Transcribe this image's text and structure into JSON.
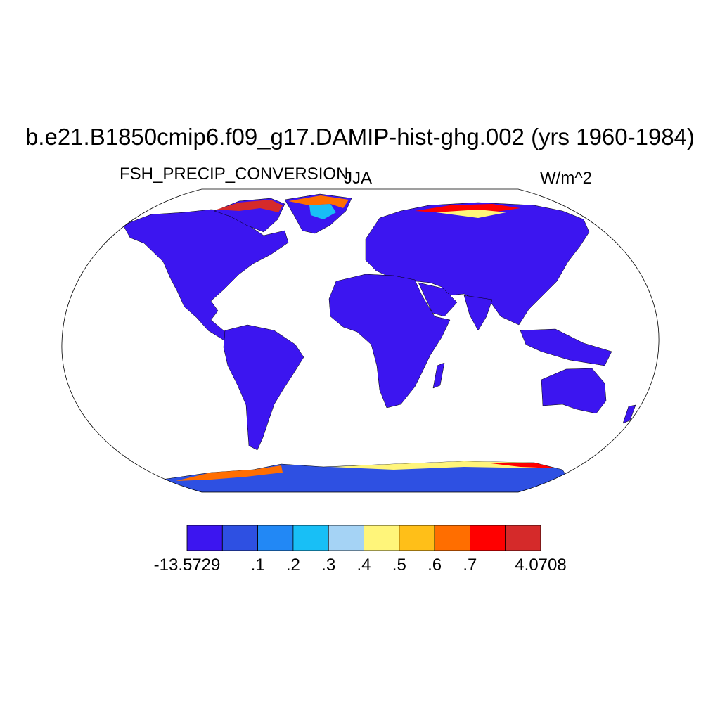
{
  "title": "b.e21.B1850cmip6.f09_g17.DAMIP-hist-ghg.002 (yrs 1960-1984)",
  "left_label": "FSH_PRECIP_CONVERSION",
  "center_label": "JJA",
  "right_label": "W/m^2",
  "map": {
    "projection": "Robinson",
    "land_fill": "#3c15f0",
    "ocean_fill": "#ffffff"
  },
  "colorbar": {
    "colors": [
      "#3c15f0",
      "#2e50e2",
      "#2288f5",
      "#18bff6",
      "#a5d3f5",
      "#fff57a",
      "#ffbf18",
      "#ff6e00",
      "#ff0000",
      "#d52a2a"
    ],
    "labels": [
      "-13.5729",
      ".1",
      ".2",
      ".3",
      ".4",
      ".5",
      ".6",
      ".7",
      "4.0708"
    ]
  }
}
